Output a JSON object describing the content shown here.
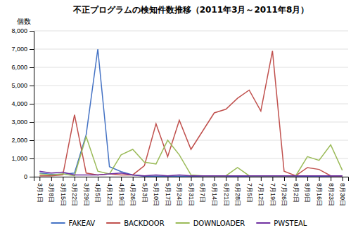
{
  "chart_data": {
    "type": "line",
    "title": "不正プログラムの検知件数推移（2011年3月～2011年8月）",
    "y_label": "個数",
    "categories": [
      "3月1日",
      "3月8日",
      "3月15日",
      "3月22日",
      "3月29日",
      "4月5日",
      "4月12日",
      "4月19日",
      "4月26日",
      "5月3日",
      "5月10日",
      "5月17日",
      "5月24日",
      "5月31日",
      "6月7日",
      "6月14日",
      "6月21日",
      "6月28日",
      "7月5日",
      "7月12日",
      "7月19日",
      "7月26日",
      "8月2日",
      "8月9日",
      "8月16日",
      "8月23日",
      "8月30日"
    ],
    "series": [
      {
        "name": "FAKEAV",
        "color": "#4472c4",
        "values": [
          200,
          130,
          130,
          200,
          2300,
          7000,
          550,
          280,
          100,
          30,
          30,
          30,
          30,
          30,
          30,
          30,
          30,
          30,
          30,
          30,
          30,
          30,
          30,
          30,
          30,
          30,
          30
        ]
      },
      {
        "name": "BACKDOOR",
        "color": "#c0504d",
        "values": [
          50,
          50,
          100,
          3400,
          200,
          100,
          150,
          100,
          100,
          600,
          2900,
          1100,
          3100,
          1500,
          2500,
          3500,
          3700,
          4300,
          4750,
          3600,
          6900,
          300,
          50,
          500,
          400,
          50,
          50
        ]
      },
      {
        "name": "DOWNLOADER",
        "color": "#9bbb59",
        "values": [
          150,
          100,
          150,
          50,
          2200,
          300,
          150,
          1200,
          1500,
          800,
          700,
          2000,
          1200,
          100,
          50,
          50,
          50,
          500,
          50,
          50,
          50,
          50,
          50,
          1100,
          900,
          1750,
          350
        ]
      },
      {
        "name": "PWSTEAL",
        "color": "#7030a0",
        "values": [
          300,
          200,
          250,
          100,
          100,
          100,
          150,
          200,
          100,
          50,
          100,
          50,
          100,
          50,
          50,
          50,
          50,
          50,
          50,
          50,
          50,
          50,
          50,
          50,
          50,
          50,
          50
        ]
      }
    ],
    "ylim": [
      0,
      8000
    ],
    "yticks": [
      0,
      {
        "value": 1000,
        "label": "1,000"
      },
      {
        "value": 2000,
        "label": "2,000"
      },
      {
        "value": 3000,
        "label": "3,000"
      },
      {
        "value": 4000,
        "label": "4,000"
      },
      {
        "value": 5000,
        "label": "5,000"
      },
      {
        "value": 6000,
        "label": "6,000"
      },
      {
        "value": 7000,
        "label": "7,000"
      },
      {
        "value": 8000,
        "label": "8,000"
      }
    ],
    "grid": true,
    "legend": "bottom"
  }
}
